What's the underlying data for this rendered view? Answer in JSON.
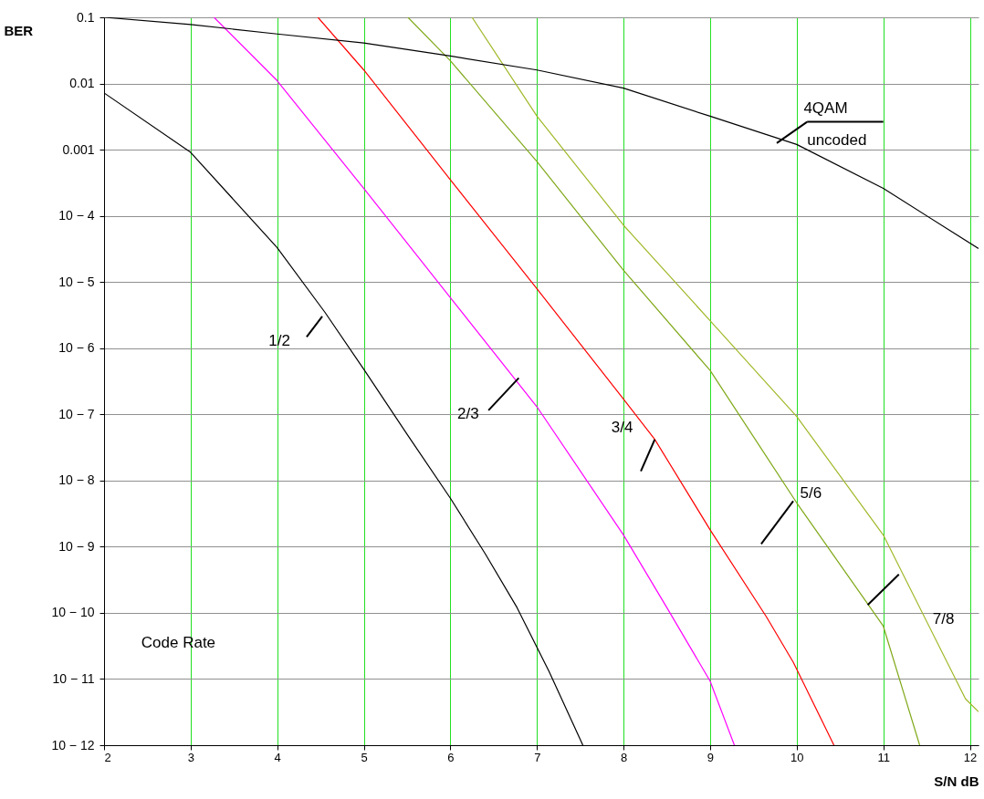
{
  "chart_data": {
    "type": "line",
    "xlabel": "S/N dB",
    "ylabel": "BER",
    "log": "y",
    "grid": true,
    "xlim": [
      2,
      12.1
    ],
    "xticks": [
      2,
      3,
      4,
      5,
      6,
      7,
      8,
      9,
      10,
      11,
      12
    ],
    "ylim": [
      1e-12,
      0.1
    ],
    "yticks": [
      0.1,
      0.01,
      0.001,
      {
        "value": 0.0001,
        "label": "10 − 4"
      },
      {
        "value": 1e-05,
        "label": "10 − 5"
      },
      {
        "value": 1e-06,
        "label": "10 − 6"
      },
      {
        "value": 1e-07,
        "label": "10 − 7"
      },
      {
        "value": 1e-08,
        "label": "10 − 8"
      },
      {
        "value": 1e-09,
        "label": "10 − 9"
      },
      {
        "value": 1e-10,
        "label": "10 − 10"
      },
      {
        "value": 1e-11,
        "label": "10 − 11"
      },
      {
        "value": 1e-12,
        "label": "10 − 12"
      }
    ],
    "annotations": [
      "Code Rate"
    ],
    "series": [
      {
        "name": "1/2",
        "color": "#000000",
        "x": [
          2,
          3,
          4,
          4.55,
          5,
          5.5,
          6,
          6.4,
          6.77,
          7.14,
          7.53
        ],
        "values": [
          0.0072,
          0.00091,
          3.3e-05,
          3.5e-06,
          4.8e-07,
          5e-08,
          5.4e-09,
          7.9e-10,
          1.2e-10,
          1.3e-11,
          1e-12
        ]
      },
      {
        "name": "2/3",
        "color": "#ff00ff",
        "x": [
          3.27,
          4,
          5,
          6,
          7,
          8,
          8.5,
          9,
          9.28
        ],
        "values": [
          0.1,
          0.011,
          0.00026,
          5.8e-06,
          1.3e-07,
          1.5e-09,
          1.2e-10,
          9.3e-12,
          1e-12
        ]
      },
      {
        "name": "3/4",
        "color": "#ff0000",
        "x": [
          4.47,
          5,
          6,
          7,
          8,
          8.36,
          9,
          9.65,
          9.96,
          10.43
        ],
        "values": [
          0.1,
          0.016,
          0.00035,
          7.9e-06,
          1.7e-07,
          4.2e-08,
          1.8e-09,
          8.7e-11,
          1.8e-11,
          1e-12
        ]
      },
      {
        "name": "5/6",
        "color": "#7fa818",
        "x": [
          5.51,
          6,
          7,
          8,
          9,
          10,
          11,
          11.42
        ],
        "values": [
          0.1,
          0.022,
          0.00066,
          1.5e-05,
          4.6e-07,
          4.6e-09,
          6.3e-11,
          1e-12
        ]
      },
      {
        "name": "7/8",
        "color": "#a0b828",
        "x": [
          6.25,
          7,
          8,
          9,
          10,
          11,
          11.95,
          12.1
        ],
        "values": [
          0.1,
          0.0032,
          7.2e-05,
          2.6e-06,
          9.3e-08,
          1.5e-09,
          5e-12,
          3.2e-12
        ]
      },
      {
        "name": "4QAM uncoded",
        "color": "#000000",
        "x": [
          2,
          3,
          4,
          5,
          6,
          7,
          8,
          9,
          10,
          11,
          12.1
        ],
        "values": [
          0.1,
          0.078,
          0.056,
          0.041,
          0.026,
          0.016,
          0.0085,
          0.0032,
          0.0012,
          0.00026,
          3.2e-05
        ]
      }
    ]
  }
}
